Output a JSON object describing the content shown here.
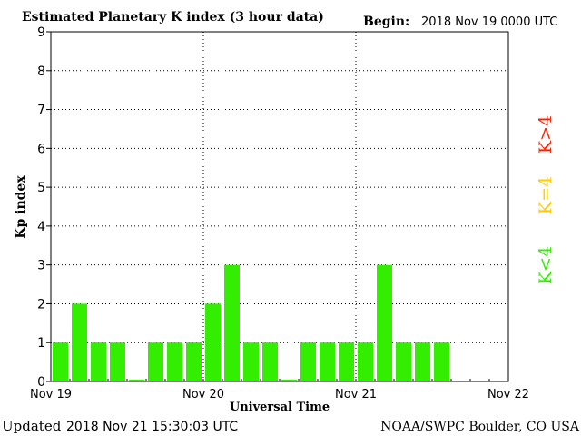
{
  "header": {
    "title": "Estimated Planetary K index (3 hour data)",
    "begin_label": "Begin:",
    "begin_value": "2018 Nov 19 0000 UTC"
  },
  "footer": {
    "updated_label": "Updated",
    "updated_value": "2018 Nov 21 15:30:03 UTC",
    "source": "NOAA/SWPC Boulder, CO USA"
  },
  "legend": {
    "high": {
      "label": "K>4",
      "color": "#ff2200"
    },
    "mid": {
      "label": "K=4",
      "color": "#ffcc00"
    },
    "low": {
      "label": "K<4",
      "color": "#33ee00"
    }
  },
  "chart_data": {
    "type": "bar",
    "title": "Estimated Planetary K index (3 hour data)",
    "xlabel": "Universal Time",
    "ylabel": "Kp index",
    "ylim": [
      0,
      9
    ],
    "yticks": [
      0,
      1,
      2,
      3,
      4,
      5,
      6,
      7,
      8,
      9
    ],
    "xticks": [
      "Nov 19",
      "Nov 20",
      "Nov 21",
      "Nov 22"
    ],
    "grid": "dotted, at each y tick and at day boundaries",
    "bar_color": "#33ee00",
    "series": [
      {
        "values": [
          1,
          2,
          1,
          1,
          0.05,
          1,
          1,
          1,
          2,
          3,
          1,
          1,
          0.05,
          1,
          1,
          1,
          1,
          3,
          1,
          1,
          1
        ]
      }
    ],
    "slots_total": 24
  }
}
